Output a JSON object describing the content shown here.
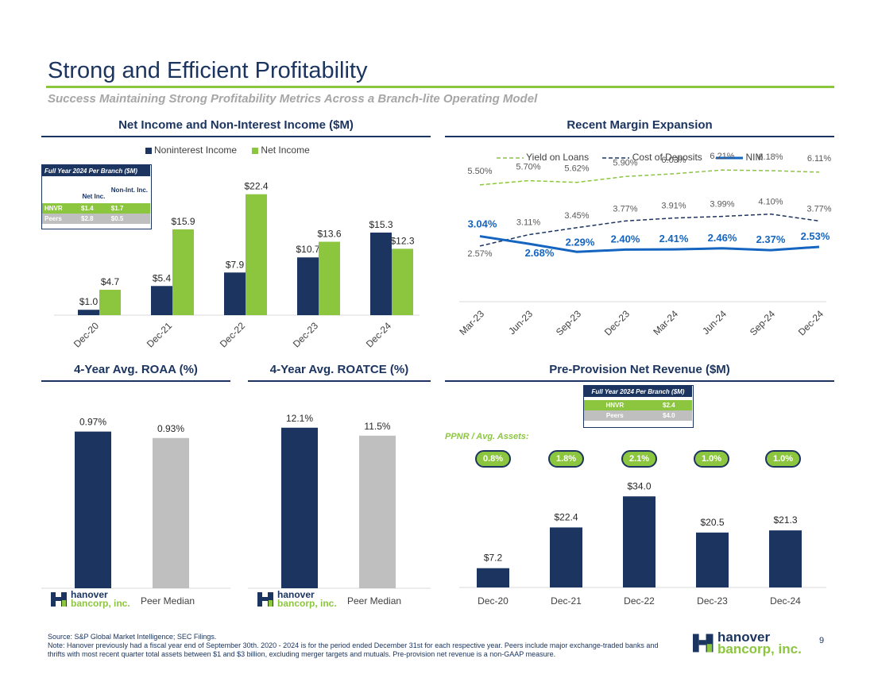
{
  "header": {
    "title": "Strong and Efficient Profitability",
    "subtitle": "Success Maintaining Strong Profitability Metrics Across a Branch-lite Operating Model"
  },
  "colors": {
    "navy": "#1c3560",
    "green": "#8cc63f",
    "gray": "#bfbfbf"
  },
  "net_income_section": {
    "title": "Net Income and Non-Interest Income ($M)",
    "branch_table": {
      "caption": "Full Year 2024 Per Branch ($M)",
      "col_headers": [
        "Net Inc.",
        "Non-Int. Inc."
      ],
      "rows": [
        {
          "label": "HNVR",
          "values": [
            "$1.4",
            "$1.7"
          ]
        },
        {
          "label": "Peers",
          "values": [
            "$2.8",
            "$0.5"
          ]
        }
      ]
    }
  },
  "margin_section": {
    "title": "Recent Margin Expansion"
  },
  "roaa_section": {
    "title": "4-Year Avg. ROAA (%)",
    "peer_label": "Peer Median"
  },
  "roatce_section": {
    "title": "4-Year Avg. ROATCE (%)",
    "peer_label": "Peer Median"
  },
  "ppnr_section": {
    "title": "Pre-Provision Net Revenue ($M)",
    "branch_table": {
      "caption": "Full Year 2024 Per Branch ($M)",
      "rows": [
        {
          "label": "HNVR",
          "value": "$2.4"
        },
        {
          "label": "Peers",
          "value": "$4.0"
        }
      ]
    },
    "ppnr_label": "PPNR / Avg. Assets:",
    "ppnr_ratios": [
      "0.8%",
      "1.8%",
      "2.1%",
      "1.0%",
      "1.0%"
    ]
  },
  "logo": {
    "line1": "hanover",
    "line2": "bancorp, inc."
  },
  "footer": {
    "source": "Source: S&P Global Market Intelligence; SEC Filings.",
    "note": "Note: Hanover previously had a fiscal year end of September 30th. 2020 - 2024 is for the period ended December 31st for each respective year. Peers include major exchange-traded banks and thrifts with most recent quarter total assets between $1 and $3 billion, excluding merger targets and mutuals. Pre-provision net revenue is a non-GAAP measure.",
    "page_number": "9"
  },
  "chart_data": [
    {
      "id": "net_income",
      "type": "bar",
      "categories": [
        "Dec-20",
        "Dec-21",
        "Dec-22",
        "Dec-23",
        "Dec-24"
      ],
      "series": [
        {
          "name": "Noninterest Income",
          "values": [
            1.0,
            5.4,
            7.9,
            10.7,
            15.3
          ],
          "labels": [
            "$1.0",
            "$5.4",
            "$7.9",
            "$10.7",
            "$15.3"
          ],
          "color": "#1c3560"
        },
        {
          "name": "Net Income",
          "values": [
            4.7,
            15.9,
            22.4,
            13.6,
            12.3
          ],
          "labels": [
            "$4.7",
            "$15.9",
            "$22.4",
            "$13.6",
            "$12.3"
          ],
          "color": "#8cc63f"
        }
      ],
      "ylim": [
        0,
        25
      ]
    },
    {
      "id": "margin",
      "type": "line",
      "categories": [
        "Mar-23",
        "Jun-23",
        "Sep-23",
        "Dec-23",
        "Mar-24",
        "Jun-24",
        "Sep-24",
        "Dec-24"
      ],
      "series": [
        {
          "name": "Yield on Loans",
          "values": [
            5.5,
            5.7,
            5.62,
            5.9,
            6.03,
            6.21,
            6.18,
            6.11
          ],
          "labels": [
            "5.50%",
            "5.70%",
            "5.62%",
            "5.90%",
            "6.03%",
            "6.21%",
            "6.18%",
            "6.11%"
          ],
          "color": "#8cc63f",
          "style": "dashed"
        },
        {
          "name": "Cost of Deposits",
          "values": [
            2.57,
            3.11,
            3.45,
            3.77,
            3.91,
            3.99,
            4.1,
            3.77
          ],
          "labels": [
            "2.57%",
            "3.11%",
            "3.45%",
            "3.77%",
            "3.91%",
            "3.99%",
            "4.10%",
            "3.77%"
          ],
          "color": "#1c3560",
          "style": "dashed"
        },
        {
          "name": "NIM",
          "values": [
            3.04,
            2.68,
            2.29,
            2.4,
            2.41,
            2.46,
            2.37,
            2.53
          ],
          "labels": [
            "3.04%",
            "2.68%",
            "2.29%",
            "2.40%",
            "2.41%",
            "2.46%",
            "2.37%",
            "2.53%"
          ],
          "color": "#1565c0",
          "style": "solid"
        }
      ]
    },
    {
      "id": "roaa",
      "type": "bar",
      "categories": [
        "Hanover",
        "Peer Median"
      ],
      "values": [
        0.97,
        0.93
      ],
      "labels": [
        "0.97%",
        "0.93%"
      ],
      "colors": [
        "#1c3560",
        "#bfbfbf"
      ],
      "ylim": [
        0,
        1.15
      ]
    },
    {
      "id": "roatce",
      "type": "bar",
      "categories": [
        "Hanover",
        "Peer Median"
      ],
      "values": [
        12.1,
        11.5
      ],
      "labels": [
        "12.1%",
        "11.5%"
      ],
      "colors": [
        "#1c3560",
        "#bfbfbf"
      ],
      "ylim": [
        0,
        14
      ]
    },
    {
      "id": "ppnr",
      "type": "bar",
      "categories": [
        "Dec-20",
        "Dec-21",
        "Dec-22",
        "Dec-23",
        "Dec-24"
      ],
      "values": [
        7.2,
        22.4,
        34.0,
        20.5,
        21.3
      ],
      "labels": [
        "$7.2",
        "$22.4",
        "$34.0",
        "$20.5",
        "$21.3"
      ],
      "color": "#1c3560",
      "ylim": [
        0,
        40
      ]
    }
  ]
}
